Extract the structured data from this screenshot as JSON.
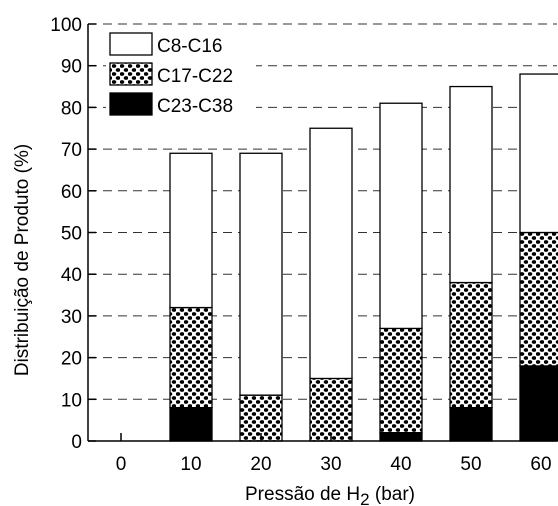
{
  "chart_data": {
    "type": "bar",
    "stacked": true,
    "categories": [
      "0",
      "10",
      "20",
      "30",
      "40",
      "50",
      "60"
    ],
    "series": [
      {
        "name": "C23-C38",
        "values": [
          0,
          8,
          0,
          0,
          2,
          8,
          18
        ],
        "pattern": "solid-black"
      },
      {
        "name": "C17-C22",
        "values": [
          0,
          24,
          11,
          15,
          25,
          30,
          32
        ],
        "pattern": "dotted"
      },
      {
        "name": "C8-C16",
        "values": [
          0,
          37,
          58,
          60,
          54,
          47,
          38
        ],
        "pattern": "white"
      }
    ],
    "title": "",
    "xlabel_prefix": "Pressão de H",
    "xlabel_subscript": "2",
    "xlabel_suffix": " (bar)",
    "ylabel": "Distribuição de Produto (%)",
    "ylim": [
      0,
      100
    ],
    "yticks": [
      "0",
      "10",
      "20",
      "30",
      "40",
      "50",
      "60",
      "70",
      "80",
      "90",
      "100"
    ],
    "grid": "dashed-horizontal",
    "legend_position": "top-left",
    "legend_order": [
      "C8-C16",
      "C17-C22",
      "C23-C38"
    ]
  }
}
